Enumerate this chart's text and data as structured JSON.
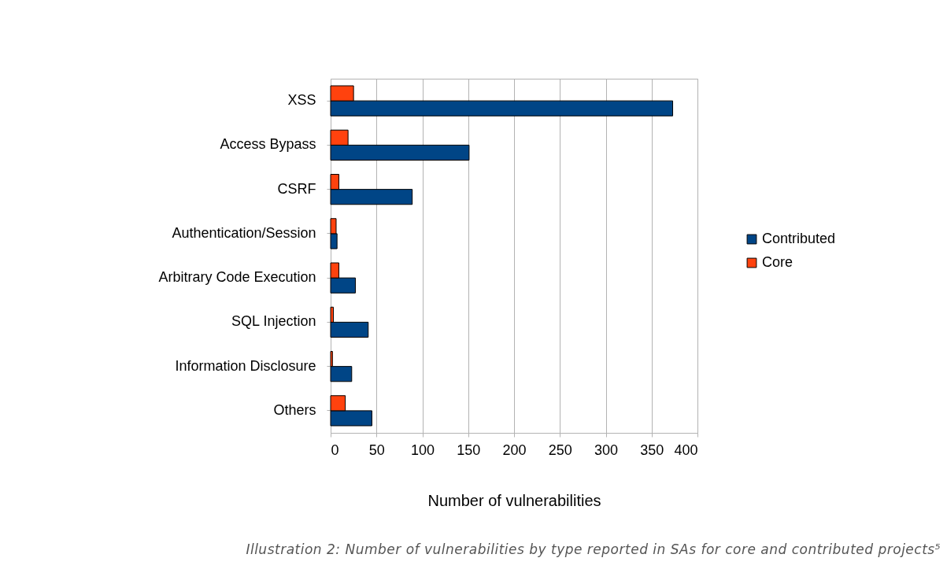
{
  "chart_data": {
    "type": "bar",
    "orientation": "horizontal",
    "xlabel": "Number of vulnerabilities",
    "categories": [
      "XSS",
      "Access Bypass",
      "CSRF",
      "Authentication/Session",
      "Arbitrary Code Execution",
      "SQL Injection",
      "Information Disclosure",
      "Others"
    ],
    "series": [
      {
        "name": "Contributed",
        "color": "#004586",
        "values": [
          373,
          151,
          89,
          7,
          27,
          41,
          23,
          45
        ]
      },
      {
        "name": "Core",
        "color": "#ff420e",
        "values": [
          25,
          19,
          9,
          6,
          9,
          3,
          2,
          16
        ]
      }
    ],
    "xlim": [
      0,
      400
    ],
    "xticks": [
      0,
      50,
      100,
      150,
      200,
      250,
      300,
      350,
      400
    ],
    "grid": "x",
    "legend": "right",
    "annotations": [
      "Illustration 2: Number of vulnerabilities by type reported in SAs for core and contributed projects⁵"
    ]
  }
}
